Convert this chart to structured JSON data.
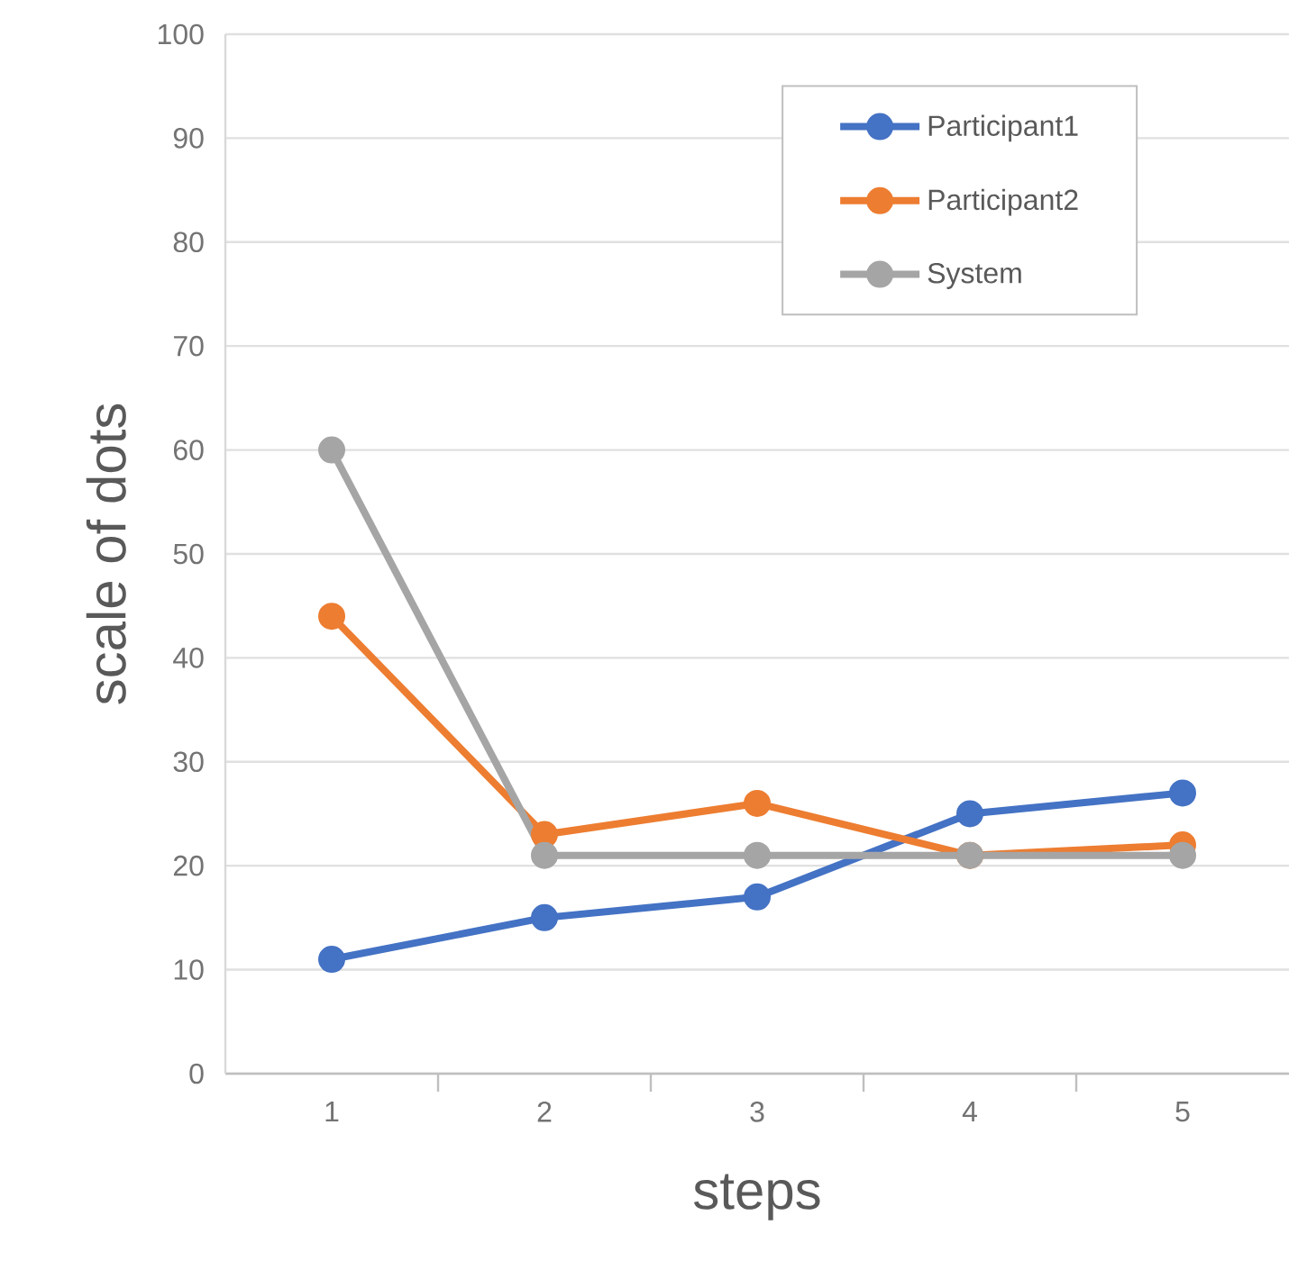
{
  "chart_data": {
    "type": "line",
    "xlabel": "steps",
    "ylabel": "scale of dots",
    "categories": [
      "1",
      "2",
      "3",
      "4",
      "5"
    ],
    "series": [
      {
        "name": "Participant1",
        "color": "#4472c4",
        "values": [
          11,
          15,
          17,
          25,
          27
        ]
      },
      {
        "name": "Participant2",
        "color": "#ed7d31",
        "values": [
          44,
          23,
          26,
          21,
          22
        ]
      },
      {
        "name": "System",
        "color": "#a5a5a5",
        "values": [
          60,
          21,
          21,
          21,
          21
        ]
      }
    ],
    "ylim": [
      0,
      100
    ],
    "yticks": [
      0,
      10,
      20,
      30,
      40,
      50,
      60,
      70,
      80,
      90,
      100
    ],
    "grid": "y",
    "legend": "top right",
    "marker": "circle",
    "line_style": "solid"
  }
}
